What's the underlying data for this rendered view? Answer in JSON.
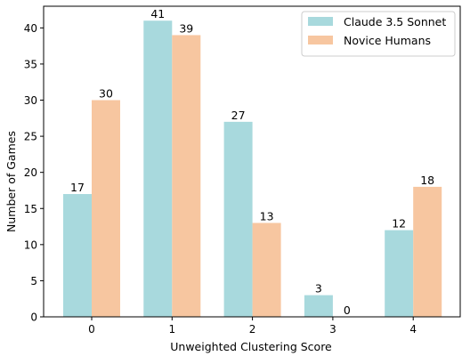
{
  "chart_data": {
    "type": "bar",
    "categories": [
      "0",
      "1",
      "2",
      "3",
      "4"
    ],
    "series": [
      {
        "name": "Claude 3.5 Sonnet",
        "values": [
          17,
          41,
          27,
          3,
          12
        ],
        "color": "#a8d9dd"
      },
      {
        "name": "Novice Humans",
        "values": [
          30,
          39,
          13,
          0,
          18
        ],
        "color": "#f7c6a0"
      }
    ],
    "xlabel": "Unweighted Clustering Score",
    "ylabel": "Number of Games",
    "ylim": [
      0,
      43
    ],
    "yticks": [
      0,
      5,
      10,
      15,
      20,
      25,
      30,
      35,
      40
    ],
    "legend_position": "top-right",
    "grid": false
  }
}
